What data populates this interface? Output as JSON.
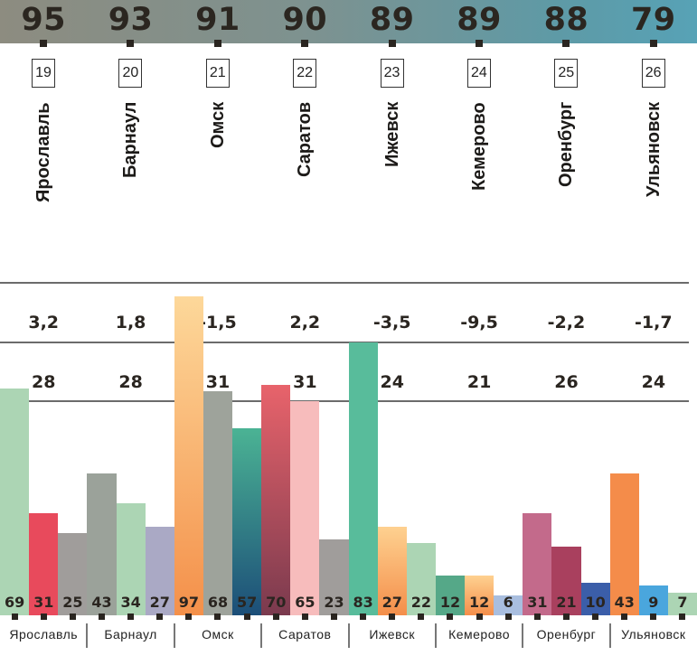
{
  "chart_data": {
    "type": "bar",
    "categories": [
      "Ярославль",
      "Барнаул",
      "Омск",
      "Саратов",
      "Ижевск",
      "Кемерово",
      "Оренбург",
      "Ульяновск"
    ],
    "ranks": [
      "19",
      "20",
      "21",
      "22",
      "23",
      "24",
      "25",
      "26"
    ],
    "scores": [
      "95",
      "93",
      "91",
      "90",
      "89",
      "89",
      "88",
      "79"
    ],
    "row_a": [
      "3,2",
      "1,8",
      "-1,5",
      "2,2",
      "-3,5",
      "-9,5",
      "-2,2",
      "-1,7"
    ],
    "row_b": [
      "28",
      "28",
      "31",
      "31",
      "24",
      "21",
      "26",
      "24"
    ],
    "bars": [
      [
        69,
        31,
        25
      ],
      [
        43,
        34,
        27
      ],
      [
        97,
        68,
        57
      ],
      [
        70,
        65,
        23
      ],
      [
        83,
        27,
        22
      ],
      [
        12,
        12,
        6
      ],
      [
        31,
        21,
        10
      ],
      [
        43,
        9,
        7
      ]
    ],
    "bar_colors": [
      [
        "#acd5b4",
        "#e84a5c",
        "#a09d9b"
      ],
      [
        "#9ba29a",
        "#acd5b4",
        "#aaa9c5"
      ],
      [
        "grad:#fdd89a:#f4904a",
        "#9ea39b",
        "grad:#4bb394:#1c4e78"
      ],
      [
        "grad:#e8636b:#7a3a4e",
        "#f7bcbc",
        "#a09d9b"
      ],
      [
        "#58bc9b",
        "grad:#fed190:#f48e4a",
        "#acd5b4"
      ],
      [
        "#55a888",
        "grad:#fed190:#f48e4a",
        "#a9bedf"
      ],
      [
        "#c36a8b",
        "#a9405e",
        "#3b5ea9"
      ],
      [
        "#f48c4a",
        "#4aa6dd",
        "#acd5b4"
      ]
    ],
    "ylim": [
      0,
      100
    ]
  }
}
